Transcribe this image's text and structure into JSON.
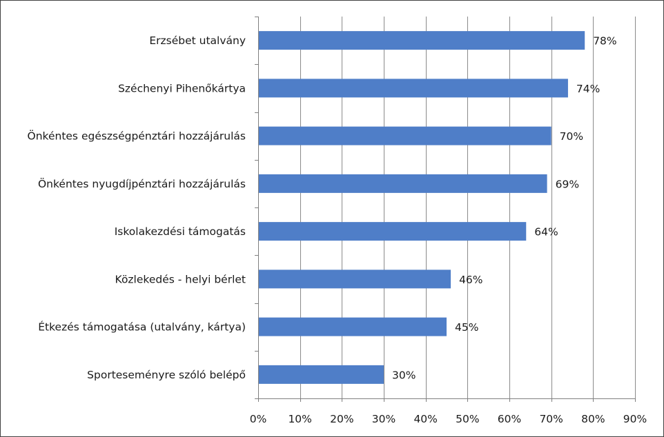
{
  "chart_data": {
    "type": "bar",
    "orientation": "horizontal",
    "categories": [
      "Erzsébet utalvány",
      "Széchenyi Pihenőkártya",
      "Önkéntes egészségpénztári hozzájárulás",
      "Önkéntes nyugdíjpénztári hozzájárulás",
      "Iskolakezdési támogatás",
      "Közlekedés - helyi bérlet",
      "Étkezés támogatása (utalvány, kártya)",
      "Sporteseményre szóló belépő"
    ],
    "values": [
      78,
      74,
      70,
      69,
      64,
      46,
      45,
      30
    ],
    "value_labels": [
      "78%",
      "74%",
      "70%",
      "69%",
      "64%",
      "46%",
      "45%",
      "30%"
    ],
    "xlim": [
      0,
      90
    ],
    "x_ticks": [
      0,
      10,
      20,
      30,
      40,
      50,
      60,
      70,
      80,
      90
    ],
    "x_tick_labels": [
      "0%",
      "10%",
      "20%",
      "30%",
      "40%",
      "50%",
      "60%",
      "70%",
      "80%",
      "90%"
    ],
    "grid": "vertical",
    "legend": "none",
    "title": "",
    "xlabel": "",
    "ylabel": "",
    "colors": {
      "bar": "#4f7ec8",
      "grid": "#8a8a8a",
      "axis": "#7f7f7f"
    }
  }
}
